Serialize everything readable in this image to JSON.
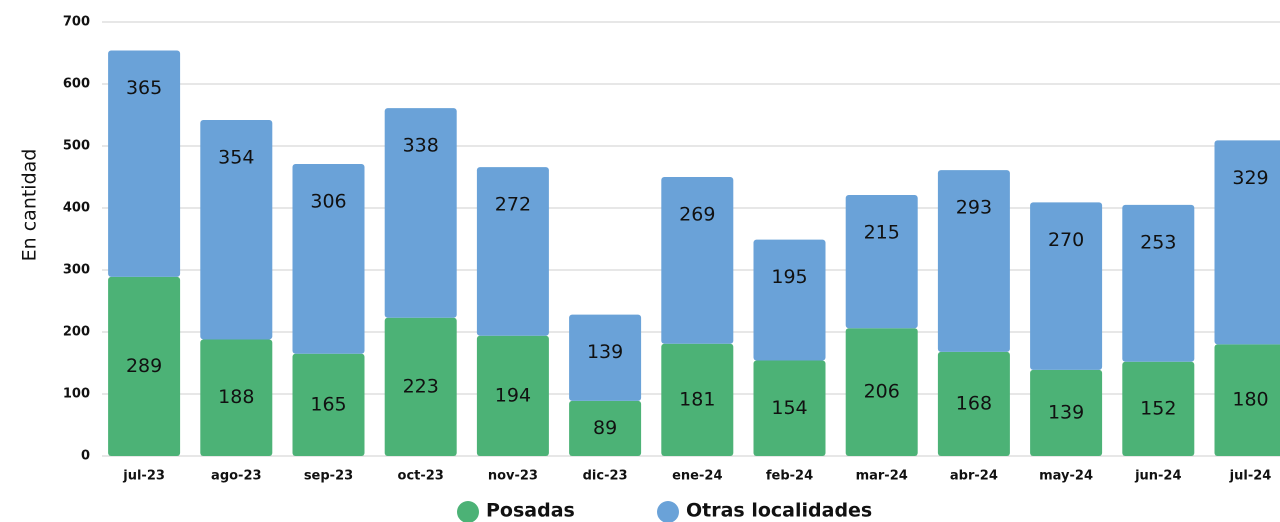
{
  "chart_data": {
    "type": "stacked_bar",
    "y_label": "En cantidad",
    "categories": [
      "jul-23",
      "ago-23",
      "sep-23",
      "oct-23",
      "nov-23",
      "dic-23",
      "ene-24",
      "feb-24",
      "mar-24",
      "abr-24",
      "may-24",
      "jun-24",
      "jul-24"
    ],
    "series": [
      {
        "name": "Posadas",
        "color": "#4cb276",
        "values": [
          289,
          188,
          165,
          223,
          194,
          89,
          181,
          154,
          206,
          168,
          139,
          152,
          180
        ]
      },
      {
        "name": "Otras localidades",
        "color": "#6aa2d8",
        "values": [
          365,
          354,
          306,
          338,
          272,
          139,
          269,
          195,
          215,
          293,
          270,
          253,
          329
        ]
      }
    ],
    "ylim": [
      0,
      700
    ],
    "yticks": [
      0,
      100,
      200,
      300,
      400,
      500,
      600,
      700
    ],
    "grid": true
  }
}
